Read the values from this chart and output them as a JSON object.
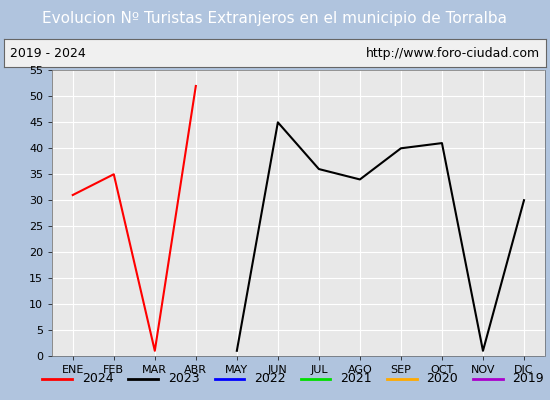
{
  "title": "Evolucion Nº Turistas Extranjeros en el municipio de Torralba",
  "subtitle_left": "2019 - 2024",
  "subtitle_right": "http://www.foro-ciudad.com",
  "months": [
    "ENE",
    "FEB",
    "MAR",
    "ABR",
    "MAY",
    "JUN",
    "JUL",
    "AGO",
    "SEP",
    "OCT",
    "NOV",
    "DIC"
  ],
  "series": {
    "2024": {
      "color": "#ff0000",
      "data": [
        31,
        35,
        1,
        52,
        null,
        null,
        null,
        null,
        null,
        null,
        null,
        null
      ]
    },
    "2023": {
      "color": "#000000",
      "data": [
        null,
        null,
        null,
        null,
        1,
        45,
        36,
        34,
        40,
        41,
        1,
        30
      ]
    },
    "2022": {
      "color": "#0000ff",
      "data": [
        null,
        null,
        null,
        null,
        null,
        null,
        null,
        null,
        null,
        null,
        null,
        null
      ]
    },
    "2021": {
      "color": "#00dd00",
      "data": [
        null,
        null,
        null,
        null,
        null,
        null,
        null,
        null,
        null,
        null,
        null,
        null
      ]
    },
    "2020": {
      "color": "#ffaa00",
      "data": [
        null,
        null,
        null,
        null,
        null,
        null,
        null,
        null,
        null,
        null,
        null,
        null
      ]
    },
    "2019": {
      "color": "#aa00cc",
      "data": [
        null,
        null,
        null,
        null,
        null,
        null,
        null,
        null,
        null,
        null,
        null,
        null
      ]
    }
  },
  "ylim": [
    0,
    55
  ],
  "yticks": [
    0,
    5,
    10,
    15,
    20,
    25,
    30,
    35,
    40,
    45,
    50,
    55
  ],
  "title_bg_color": "#4a86c8",
  "title_text_color": "#ffffff",
  "subtitle_bg_color": "#f0f0f0",
  "plot_bg_color": "#e8e8e8",
  "outer_bg_color": "#b0c4de",
  "grid_color": "#ffffff",
  "legend_order": [
    "2024",
    "2023",
    "2022",
    "2021",
    "2020",
    "2019"
  ],
  "title_fontsize": 11,
  "subtitle_fontsize": 9,
  "tick_fontsize": 8
}
